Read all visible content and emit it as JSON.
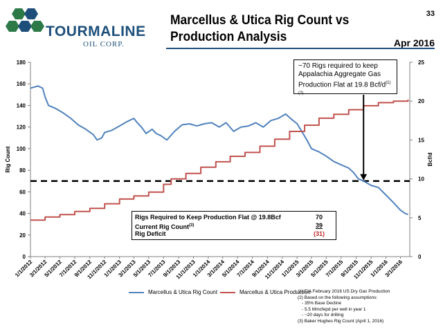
{
  "header": {
    "logo_word": "TOURMALINE",
    "logo_sub": "OIL CORP.",
    "title_line1": "Marcellus & Utica Rig Count vs",
    "title_line2": "Production Analysis",
    "page_number": "33",
    "date": "Apr 2016"
  },
  "callout": {
    "line1": "~70 Rigs required to keep",
    "line2": "Appalachia Aggregate Gas",
    "line3": "Production Flat at 19.8 Bcf/d",
    "sup": "(1)(2)"
  },
  "summary_table": {
    "rows": [
      {
        "label": "Rigs Required to Keep Production Flat @ 19.8Bcf",
        "sup": "",
        "value": "70"
      },
      {
        "label": "Current Rig Count",
        "sup": "(3)",
        "value": "39"
      },
      {
        "label": "Rig Deficit",
        "sup": "",
        "value": "(31)"
      }
    ]
  },
  "footnotes": [
    "(1) EIA February 2016 US Dry Gas Production",
    "(2) Based on the following assumptions:",
    "- 35% Base Decline",
    "- 5.5 Mmcfepd per well in year 1",
    "- ~20 days for drilling",
    "(3) Baker Hughes Rig Count (April 1, 2016)"
  ],
  "colors": {
    "rig": "#4f81bd",
    "production": "#c0504d",
    "brand": "#1d4f7a",
    "deficit": "#c0292a"
  },
  "chart_data": {
    "type": "line",
    "title": "",
    "xlabel": "",
    "ylabel": "Rig Count",
    "y2label": "Bcf/d",
    "ylim": [
      0,
      180
    ],
    "y2lim": [
      0,
      25
    ],
    "yticks": [
      0,
      20,
      40,
      60,
      80,
      100,
      120,
      140,
      160,
      180
    ],
    "y2ticks": [
      0,
      5,
      10,
      15,
      20,
      25
    ],
    "xlim": [
      "2012-01-01",
      "2016-04-08"
    ],
    "x_tick_labels": [
      "1/1/2012",
      "3/1/2012",
      "5/1/2012",
      "7/1/2012",
      "9/1/2012",
      "11/1/2012",
      "1/1/2013",
      "3/1/2013",
      "5/1/2013",
      "7/1/2013",
      "9/1/2013",
      "11/1/2013",
      "1/1/2014",
      "3/1/2014",
      "5/1/2014",
      "7/1/2014",
      "9/1/2014",
      "11/1/2014",
      "1/1/2015",
      "3/1/2015",
      "5/1/2015",
      "7/1/2015",
      "9/1/2015",
      "11/1/2015",
      "1/1/2016",
      "3/1/2016"
    ],
    "grid": false,
    "legend_position": "bottom-left",
    "reference_line": {
      "axis": "y",
      "value": 70,
      "style": "dashed"
    },
    "callout_arrow_x": "2015-10-01",
    "series": [
      {
        "name": "Marcellus & Utica Rig Count",
        "axis": "left",
        "step": false,
        "points": [
          [
            "2012-01-01",
            156
          ],
          [
            "2012-02-01",
            158
          ],
          [
            "2012-02-20",
            156
          ],
          [
            "2012-03-01",
            148
          ],
          [
            "2012-03-15",
            140
          ],
          [
            "2012-04-15",
            137
          ],
          [
            "2012-05-15",
            133
          ],
          [
            "2012-06-15",
            128
          ],
          [
            "2012-07-15",
            122
          ],
          [
            "2012-08-15",
            118
          ],
          [
            "2012-09-15",
            113
          ],
          [
            "2012-10-01",
            108
          ],
          [
            "2012-10-20",
            110
          ],
          [
            "2012-11-01",
            115
          ],
          [
            "2012-12-01",
            117
          ],
          [
            "2013-01-01",
            121
          ],
          [
            "2013-02-01",
            125
          ],
          [
            "2013-03-01",
            128
          ],
          [
            "2013-03-15",
            124
          ],
          [
            "2013-04-01",
            120
          ],
          [
            "2013-04-20",
            114
          ],
          [
            "2013-05-15",
            118
          ],
          [
            "2013-06-01",
            114
          ],
          [
            "2013-06-20",
            112
          ],
          [
            "2013-07-15",
            108
          ],
          [
            "2013-08-15",
            116
          ],
          [
            "2013-09-15",
            122
          ],
          [
            "2013-10-15",
            123
          ],
          [
            "2013-11-15",
            121
          ],
          [
            "2013-12-15",
            123
          ],
          [
            "2014-01-15",
            124
          ],
          [
            "2014-02-15",
            120
          ],
          [
            "2014-03-15",
            124
          ],
          [
            "2014-04-15",
            116
          ],
          [
            "2014-05-15",
            120
          ],
          [
            "2014-06-15",
            121
          ],
          [
            "2014-07-15",
            124
          ],
          [
            "2014-08-15",
            120
          ],
          [
            "2014-09-15",
            126
          ],
          [
            "2014-10-15",
            128
          ],
          [
            "2014-11-15",
            132
          ],
          [
            "2014-12-10",
            127
          ],
          [
            "2015-01-01",
            123
          ],
          [
            "2015-01-20",
            116
          ],
          [
            "2015-02-10",
            108
          ],
          [
            "2015-03-01",
            100
          ],
          [
            "2015-04-01",
            97
          ],
          [
            "2015-05-01",
            93
          ],
          [
            "2015-06-01",
            88
          ],
          [
            "2015-07-01",
            85
          ],
          [
            "2015-08-01",
            82
          ],
          [
            "2015-08-20",
            78
          ],
          [
            "2015-09-10",
            72
          ],
          [
            "2015-10-01",
            70
          ],
          [
            "2015-11-01",
            66
          ],
          [
            "2015-12-01",
            64
          ],
          [
            "2016-01-01",
            57
          ],
          [
            "2016-02-01",
            50
          ],
          [
            "2016-03-01",
            43
          ],
          [
            "2016-03-20",
            40
          ],
          [
            "2016-04-01",
            39
          ]
        ]
      },
      {
        "name": "Marcellus & Utica Production",
        "axis": "right",
        "step": true,
        "points": [
          [
            "2012-01-01",
            4.7
          ],
          [
            "2012-03-01",
            5.1
          ],
          [
            "2012-05-01",
            5.4
          ],
          [
            "2012-07-01",
            5.8
          ],
          [
            "2012-09-01",
            6.2
          ],
          [
            "2012-11-01",
            6.8
          ],
          [
            "2013-01-01",
            7.4
          ],
          [
            "2013-03-01",
            7.8
          ],
          [
            "2013-05-01",
            8.3
          ],
          [
            "2013-07-01",
            9.3
          ],
          [
            "2013-08-01",
            10.0
          ],
          [
            "2013-10-01",
            10.7
          ],
          [
            "2013-12-01",
            11.5
          ],
          [
            "2014-02-01",
            12.2
          ],
          [
            "2014-04-01",
            12.9
          ],
          [
            "2014-06-01",
            13.4
          ],
          [
            "2014-08-01",
            14.2
          ],
          [
            "2014-10-01",
            15.1
          ],
          [
            "2014-12-01",
            16.1
          ],
          [
            "2015-02-01",
            16.9
          ],
          [
            "2015-04-01",
            17.8
          ],
          [
            "2015-06-01",
            18.3
          ],
          [
            "2015-08-01",
            18.9
          ],
          [
            "2015-10-01",
            19.4
          ],
          [
            "2015-12-01",
            19.8
          ],
          [
            "2016-02-01",
            20.0
          ],
          [
            "2016-04-01",
            20.2
          ]
        ]
      }
    ]
  }
}
